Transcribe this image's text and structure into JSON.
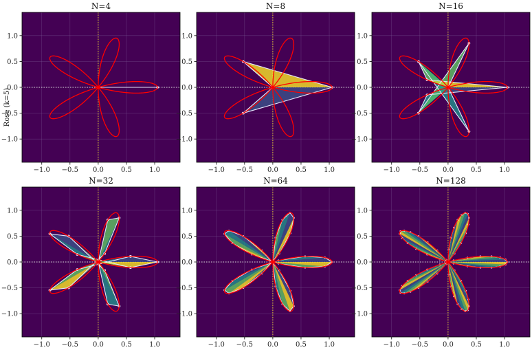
{
  "figure": {
    "row_label": "Rose (k=5)"
  },
  "colors": {
    "background": "#440154",
    "grid": "#7a5a94",
    "curve": "#ff0000",
    "axis_line": "#fde725",
    "polygon_outline": "#e6e6fa",
    "fill_low": "#3b528b",
    "fill_mid": "#21918c",
    "fill_high": "#5ec962",
    "fill_peak": "#fde725"
  },
  "chart_data": [
    {
      "type": "line",
      "title": "N=4",
      "rose_k": 5,
      "samples": 4,
      "xlim": [
        -1.35,
        1.45
      ],
      "ylim": [
        -1.45,
        1.45
      ],
      "xticks": [
        "−1.0",
        "−0.5",
        "0.0",
        "0.5",
        "1.0"
      ],
      "yticks": [
        "1.0",
        "0.5",
        "0.0",
        "−0.5",
        "−1.0"
      ],
      "grid": true,
      "legend": "none"
    },
    {
      "type": "line",
      "title": "N=8",
      "rose_k": 5,
      "samples": 8,
      "xlim": [
        -1.35,
        1.45
      ],
      "ylim": [
        -1.45,
        1.45
      ],
      "xticks": [
        "−1.0",
        "−0.5",
        "0.0",
        "0.5",
        "1.0"
      ],
      "yticks": [
        "1.0",
        "0.5",
        "0.0",
        "−0.5",
        "−1.0"
      ],
      "grid": true,
      "legend": "none"
    },
    {
      "type": "line",
      "title": "N=16",
      "rose_k": 5,
      "samples": 16,
      "xlim": [
        -1.35,
        1.45
      ],
      "ylim": [
        -1.45,
        1.45
      ],
      "xticks": [
        "−1.0",
        "−0.5",
        "0.0",
        "0.5",
        "1.0"
      ],
      "yticks": [
        "1.0",
        "0.5",
        "0.0",
        "−0.5",
        "−1.0"
      ],
      "grid": true,
      "legend": "none"
    },
    {
      "type": "line",
      "title": "N=32",
      "rose_k": 5,
      "samples": 32,
      "xlim": [
        -1.35,
        1.45
      ],
      "ylim": [
        -1.45,
        1.45
      ],
      "xticks": [
        "−1.0",
        "−0.5",
        "0.0",
        "0.5",
        "1.0"
      ],
      "yticks": [
        "1.0",
        "0.5",
        "0.0",
        "−0.5",
        "−1.0"
      ],
      "grid": true,
      "legend": "none"
    },
    {
      "type": "line",
      "title": "N=64",
      "rose_k": 5,
      "samples": 64,
      "xlim": [
        -1.35,
        1.45
      ],
      "ylim": [
        -1.45,
        1.45
      ],
      "xticks": [
        "−1.0",
        "−0.5",
        "0.0",
        "0.5",
        "1.0"
      ],
      "yticks": [
        "1.0",
        "0.5",
        "0.0",
        "−0.5",
        "−1.0"
      ],
      "grid": true,
      "legend": "none"
    },
    {
      "type": "line",
      "title": "N=128",
      "rose_k": 5,
      "samples": 128,
      "xlim": [
        -1.35,
        1.45
      ],
      "ylim": [
        -1.45,
        1.45
      ],
      "xticks": [
        "−1.0",
        "−0.5",
        "0.0",
        "0.5",
        "1.0"
      ],
      "yticks": [
        "1.0",
        "0.5",
        "0.0",
        "−0.5",
        "−1.0"
      ],
      "grid": true,
      "legend": "none"
    }
  ]
}
